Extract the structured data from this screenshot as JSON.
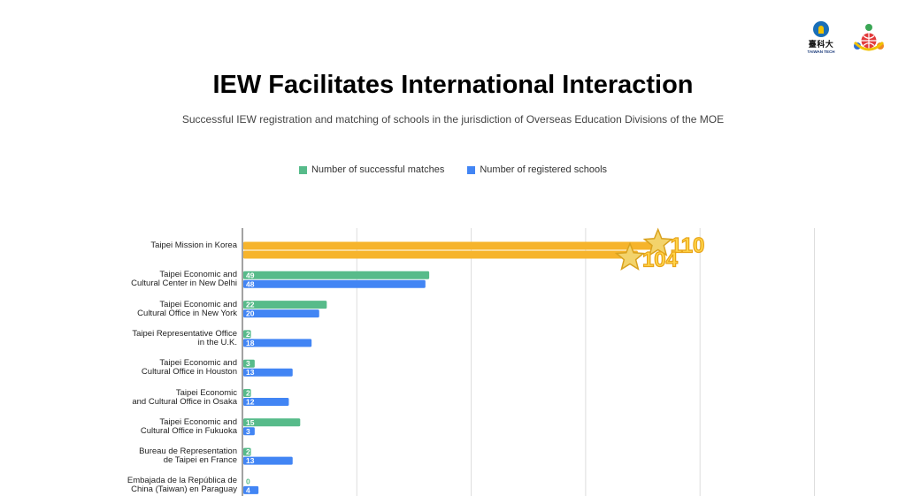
{
  "title": "IEW Facilitates International Interaction",
  "subtitle": "Successful IEW registration and matching of schools in the jurisdiction of Overseas Education Divisions of the MOE",
  "logos": {
    "left_text": "臺科大",
    "left_subtext": "TAIWAN TECH"
  },
  "colors": {
    "matches": "#57bb8a",
    "registered": "#4285f4",
    "highlight": "#f6b42c"
  },
  "chart_data": {
    "type": "bar",
    "orientation": "horizontal",
    "categories": [
      [
        "Taipei Mission in Korea"
      ],
      [
        "Taipei Economic and",
        "Cultural Center in New Delhi"
      ],
      [
        "Taipei Economic and",
        "Cultural Office in New York"
      ],
      [
        "Taipei Representative Office",
        "in the U.K."
      ],
      [
        "Taipei Economic and",
        "Cultural Office in Houston"
      ],
      [
        "Taipei Economic",
        "and Cultural Office in Osaka"
      ],
      [
        "Taipei Economic and",
        "Cultural Office in Fukuoka"
      ],
      [
        "Bureau de Representation",
        "de Taipei en France"
      ],
      [
        "Embajada de la República de",
        "China (Taiwan) en Paraguay"
      ]
    ],
    "series": [
      {
        "name": "Number of successful matches",
        "values": [
          110,
          49,
          22,
          2,
          3,
          2,
          15,
          2,
          0
        ]
      },
      {
        "name": "Number of registered schools",
        "values": [
          104,
          48,
          20,
          18,
          13,
          12,
          3,
          13,
          4
        ]
      }
    ],
    "xlim": [
      0,
      125
    ],
    "grid": true,
    "legend": "top-center",
    "highlight_category_index": 0
  }
}
